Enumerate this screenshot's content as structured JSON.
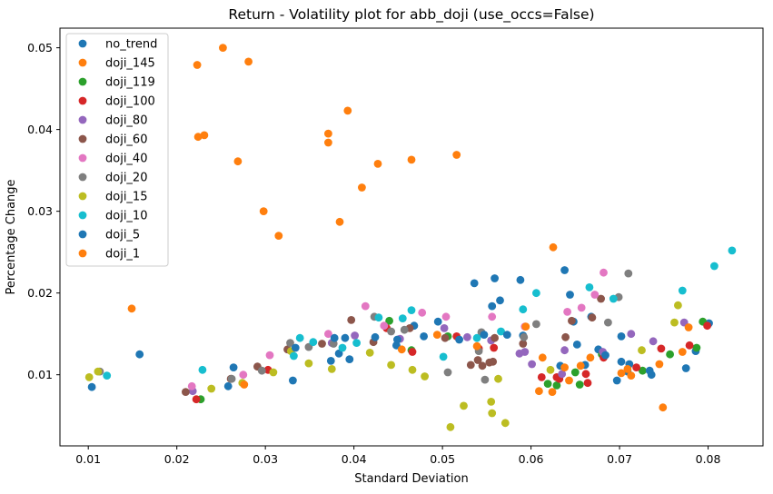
{
  "chart_data": {
    "type": "scatter",
    "title": "Return - Volatility plot for abb_doji (use_occs=False)",
    "xlabel": "Standard Deviation",
    "ylabel": "Percentage Change",
    "xlim": [
      0.0068,
      0.0862
    ],
    "ylim": [
      0.0013,
      0.0524
    ],
    "xticks": [
      0.01,
      0.02,
      0.03,
      0.04,
      0.05,
      0.06,
      0.07,
      0.08
    ],
    "yticks": [
      0.01,
      0.02,
      0.03,
      0.04,
      0.05
    ],
    "xtick_labels": [
      "0.01",
      "0.02",
      "0.03",
      "0.04",
      "0.05",
      "0.06",
      "0.07",
      "0.08"
    ],
    "ytick_labels": [
      "0.01",
      "0.02",
      "0.03",
      "0.04",
      "0.05"
    ],
    "grid": false,
    "legend_position": "top-left",
    "series": [
      {
        "name": "no_trend",
        "color": "#1f77b4",
        "points": [
          [
            0.0104,
            0.0085
          ],
          [
            0.0158,
            0.0125
          ],
          [
            0.0258,
            0.0086
          ],
          [
            0.0331,
            0.0093
          ],
          [
            0.0383,
            0.0126
          ],
          [
            0.0395,
            0.0119
          ],
          [
            0.0448,
            0.0136
          ],
          [
            0.0468,
            0.016
          ],
          [
            0.0536,
            0.0212
          ],
          [
            0.0559,
            0.0218
          ],
          [
            0.0565,
            0.0191
          ],
          [
            0.0588,
            0.0216
          ],
          [
            0.0591,
            0.0148
          ],
          [
            0.0638,
            0.0228
          ],
          [
            0.0648,
            0.0165
          ],
          [
            0.0652,
            0.0137
          ],
          [
            0.0668,
            0.0171
          ],
          [
            0.0676,
            0.0131
          ],
          [
            0.0702,
            0.0116
          ],
          [
            0.0711,
            0.0113
          ],
          [
            0.0736,
            0.01
          ],
          [
            0.0775,
            0.0108
          ],
          [
            0.0786,
            0.0129
          ],
          [
            0.0801,
            0.0163
          ]
        ]
      },
      {
        "name": "doji_145",
        "color": "#ff7f0e",
        "points": [
          [
            0.0149,
            0.0181
          ],
          [
            0.0223,
            0.0479
          ],
          [
            0.0224,
            0.0391
          ],
          [
            0.0231,
            0.0393
          ],
          [
            0.0252,
            0.05
          ],
          [
            0.0269,
            0.0361
          ],
          [
            0.0281,
            0.0483
          ],
          [
            0.0298,
            0.03
          ],
          [
            0.0315,
            0.027
          ],
          [
            0.0371,
            0.0395
          ],
          [
            0.0371,
            0.0384
          ],
          [
            0.0384,
            0.0287
          ],
          [
            0.0393,
            0.0423
          ],
          [
            0.0409,
            0.0329
          ],
          [
            0.0427,
            0.0358
          ],
          [
            0.0465,
            0.0363
          ],
          [
            0.0516,
            0.0369
          ],
          [
            0.0625,
            0.0256
          ]
        ]
      },
      {
        "name": "doji_119",
        "color": "#2ca02c",
        "points": [
          [
            0.0227,
            0.007
          ],
          [
            0.044,
            0.0166
          ],
          [
            0.0465,
            0.013
          ],
          [
            0.0506,
            0.0147
          ],
          [
            0.0619,
            0.0089
          ],
          [
            0.0629,
            0.0087
          ],
          [
            0.065,
            0.0103
          ],
          [
            0.0655,
            0.0088
          ],
          [
            0.068,
            0.0125
          ],
          [
            0.0726,
            0.0105
          ],
          [
            0.0757,
            0.0125
          ],
          [
            0.0787,
            0.0133
          ],
          [
            0.0794,
            0.0165
          ]
        ]
      },
      {
        "name": "doji_100",
        "color": "#d62728",
        "points": [
          [
            0.0222,
            0.007
          ],
          [
            0.0303,
            0.0106
          ],
          [
            0.0437,
            0.0157
          ],
          [
            0.0466,
            0.0128
          ],
          [
            0.0516,
            0.0147
          ],
          [
            0.0541,
            0.0132
          ],
          [
            0.0558,
            0.0133
          ],
          [
            0.0612,
            0.0097
          ],
          [
            0.0629,
            0.0097
          ],
          [
            0.0632,
            0.0095
          ],
          [
            0.0662,
            0.0101
          ],
          [
            0.0664,
            0.009
          ],
          [
            0.0682,
            0.0121
          ],
          [
            0.0719,
            0.0109
          ],
          [
            0.0747,
            0.0132
          ],
          [
            0.0779,
            0.0136
          ],
          [
            0.0799,
            0.016
          ]
        ]
      },
      {
        "name": "doji_80",
        "color": "#9467bd",
        "points": [
          [
            0.0218,
            0.008
          ],
          [
            0.0375,
            0.0139
          ],
          [
            0.0401,
            0.0148
          ],
          [
            0.0452,
            0.0144
          ],
          [
            0.0502,
            0.0157
          ],
          [
            0.0528,
            0.0146
          ],
          [
            0.0555,
            0.0142
          ],
          [
            0.0587,
            0.0126
          ],
          [
            0.0593,
            0.0128
          ],
          [
            0.0601,
            0.0113
          ],
          [
            0.0635,
            0.0101
          ],
          [
            0.0638,
            0.013
          ],
          [
            0.0681,
            0.0128
          ],
          [
            0.0713,
            0.015
          ],
          [
            0.0738,
            0.0141
          ],
          [
            0.0773,
            0.0164
          ]
        ]
      },
      {
        "name": "doji_60",
        "color": "#8c564b",
        "points": [
          [
            0.021,
            0.0079
          ],
          [
            0.0261,
            0.0095
          ],
          [
            0.0291,
            0.011
          ],
          [
            0.0325,
            0.0131
          ],
          [
            0.0364,
            0.0138
          ],
          [
            0.0397,
            0.0167
          ],
          [
            0.0422,
            0.014
          ],
          [
            0.0463,
            0.0157
          ],
          [
            0.0503,
            0.0145
          ],
          [
            0.0532,
            0.0112
          ],
          [
            0.054,
            0.0118
          ],
          [
            0.0545,
            0.0111
          ],
          [
            0.0553,
            0.0115
          ],
          [
            0.0557,
            0.0116
          ],
          [
            0.0559,
            0.0145
          ],
          [
            0.0591,
            0.0138
          ],
          [
            0.0639,
            0.0146
          ],
          [
            0.0646,
            0.0166
          ],
          [
            0.0669,
            0.017
          ],
          [
            0.0679,
            0.0193
          ]
        ]
      },
      {
        "name": "doji_40",
        "color": "#e377c2",
        "points": [
          [
            0.0217,
            0.0086
          ],
          [
            0.0275,
            0.01
          ],
          [
            0.0305,
            0.0124
          ],
          [
            0.0371,
            0.015
          ],
          [
            0.0413,
            0.0184
          ],
          [
            0.0434,
            0.016
          ],
          [
            0.0477,
            0.0176
          ],
          [
            0.0504,
            0.0171
          ],
          [
            0.0556,
            0.0171
          ],
          [
            0.0593,
            0.0159
          ],
          [
            0.0641,
            0.0177
          ],
          [
            0.0657,
            0.0182
          ],
          [
            0.0672,
            0.0198
          ],
          [
            0.0682,
            0.0225
          ]
        ]
      },
      {
        "name": "doji_20",
        "color": "#7f7f7f",
        "points": [
          [
            0.0113,
            0.0104
          ],
          [
            0.0262,
            0.0095
          ],
          [
            0.0296,
            0.0105
          ],
          [
            0.0328,
            0.0139
          ],
          [
            0.0349,
            0.0134
          ],
          [
            0.0377,
            0.0138
          ],
          [
            0.0423,
            0.0171
          ],
          [
            0.0442,
            0.0153
          ],
          [
            0.0457,
            0.0155
          ],
          [
            0.0506,
            0.0103
          ],
          [
            0.0544,
            0.0152
          ],
          [
            0.0541,
            0.0129
          ],
          [
            0.0548,
            0.0094
          ],
          [
            0.0592,
            0.0146
          ],
          [
            0.0606,
            0.0162
          ],
          [
            0.0687,
            0.0164
          ],
          [
            0.0699,
            0.0195
          ],
          [
            0.071,
            0.0224
          ]
        ]
      },
      {
        "name": "doji_15",
        "color": "#bcbd22",
        "points": [
          [
            0.0101,
            0.0097
          ],
          [
            0.0111,
            0.0104
          ],
          [
            0.0239,
            0.0083
          ],
          [
            0.0274,
            0.009
          ],
          [
            0.0309,
            0.0103
          ],
          [
            0.0329,
            0.0129
          ],
          [
            0.0349,
            0.0114
          ],
          [
            0.0375,
            0.0107
          ],
          [
            0.0418,
            0.0127
          ],
          [
            0.0442,
            0.0112
          ],
          [
            0.0466,
            0.0106
          ],
          [
            0.048,
            0.0098
          ],
          [
            0.0509,
            0.0036
          ],
          [
            0.0524,
            0.0062
          ],
          [
            0.0555,
            0.0067
          ],
          [
            0.0556,
            0.0053
          ],
          [
            0.0563,
            0.0095
          ],
          [
            0.0571,
            0.0041
          ],
          [
            0.0622,
            0.0106
          ],
          [
            0.0725,
            0.013
          ],
          [
            0.0762,
            0.0164
          ],
          [
            0.0766,
            0.0185
          ]
        ]
      },
      {
        "name": "doji_10",
        "color": "#17becf",
        "points": [
          [
            0.0121,
            0.0099
          ],
          [
            0.0229,
            0.0106
          ],
          [
            0.0332,
            0.0123
          ],
          [
            0.0339,
            0.0145
          ],
          [
            0.0354,
            0.014
          ],
          [
            0.0387,
            0.0133
          ],
          [
            0.0403,
            0.0139
          ],
          [
            0.0428,
            0.017
          ],
          [
            0.0455,
            0.0169
          ],
          [
            0.0465,
            0.0179
          ],
          [
            0.0501,
            0.0122
          ],
          [
            0.0539,
            0.0145
          ],
          [
            0.0566,
            0.0153
          ],
          [
            0.0591,
            0.018
          ],
          [
            0.0606,
            0.02
          ],
          [
            0.0666,
            0.0207
          ],
          [
            0.0693,
            0.0193
          ],
          [
            0.0771,
            0.0203
          ],
          [
            0.0807,
            0.0233
          ],
          [
            0.0827,
            0.0252
          ]
        ]
      },
      {
        "name": "doji_5",
        "color": "#1f77b4",
        "points": [
          [
            0.0264,
            0.0109
          ],
          [
            0.0334,
            0.0133
          ],
          [
            0.0374,
            0.0117
          ],
          [
            0.0378,
            0.0145
          ],
          [
            0.039,
            0.0145
          ],
          [
            0.0424,
            0.0146
          ],
          [
            0.0449,
            0.0143
          ],
          [
            0.0479,
            0.0147
          ],
          [
            0.0495,
            0.0165
          ],
          [
            0.0519,
            0.0143
          ],
          [
            0.0547,
            0.0149
          ],
          [
            0.0556,
            0.0184
          ],
          [
            0.0573,
            0.0149
          ],
          [
            0.0633,
            0.0111
          ],
          [
            0.0644,
            0.0198
          ],
          [
            0.0661,
            0.0112
          ],
          [
            0.0684,
            0.0124
          ],
          [
            0.0697,
            0.0093
          ],
          [
            0.0702,
            0.0147
          ],
          [
            0.0709,
            0.0104
          ],
          [
            0.0734,
            0.0105
          ]
        ]
      },
      {
        "name": "doji_1",
        "color": "#ff7f0e",
        "points": [
          [
            0.0276,
            0.0088
          ],
          [
            0.0454,
            0.0131
          ],
          [
            0.0494,
            0.0149
          ],
          [
            0.0539,
            0.0135
          ],
          [
            0.0594,
            0.0159
          ],
          [
            0.0609,
            0.008
          ],
          [
            0.0613,
            0.0121
          ],
          [
            0.0624,
            0.0079
          ],
          [
            0.0638,
            0.0109
          ],
          [
            0.0643,
            0.0093
          ],
          [
            0.0656,
            0.0111
          ],
          [
            0.0667,
            0.0121
          ],
          [
            0.0702,
            0.0102
          ],
          [
            0.0709,
            0.0107
          ],
          [
            0.0713,
            0.0099
          ],
          [
            0.0745,
            0.0113
          ],
          [
            0.0749,
            0.006
          ],
          [
            0.0771,
            0.0128
          ],
          [
            0.0778,
            0.0158
          ]
        ]
      }
    ]
  }
}
